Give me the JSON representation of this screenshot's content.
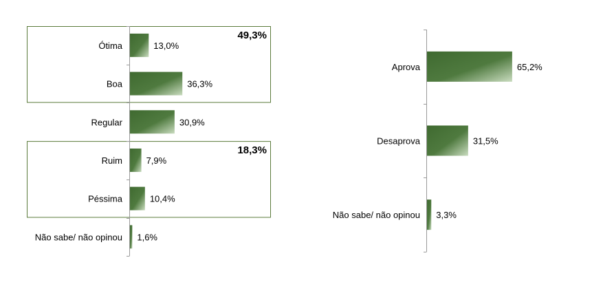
{
  "chart_data": [
    {
      "type": "bar",
      "orientation": "horizontal",
      "categories": [
        "Ótima",
        "Boa",
        "Regular",
        "Ruim",
        "Péssima",
        "Não sabe/ não opinou"
      ],
      "values": [
        13.0,
        36.3,
        30.9,
        7.9,
        10.4,
        1.6
      ],
      "value_labels": [
        "13,0%",
        "36,3%",
        "30,9%",
        "7,9%",
        "10,4%",
        "1,6%"
      ],
      "groups": [
        {
          "label": "49,3%",
          "categories": [
            "Ótima",
            "Boa"
          ]
        },
        {
          "label": "18,3%",
          "categories": [
            "Ruim",
            "Péssima"
          ]
        }
      ],
      "xlim": [
        0,
        100
      ],
      "grid": false,
      "bar_color": "#4f7a3f",
      "frame_color": "#5a7a3a"
    },
    {
      "type": "bar",
      "orientation": "horizontal",
      "categories": [
        "Aprova",
        "Desaprova",
        "Não sabe/ não opinou"
      ],
      "values": [
        65.2,
        31.5,
        3.3
      ],
      "value_labels": [
        "65,2%",
        "31,5%",
        "3,3%"
      ],
      "xlim": [
        0,
        100
      ],
      "grid": false,
      "bar_color": "#4f7a3f"
    }
  ]
}
